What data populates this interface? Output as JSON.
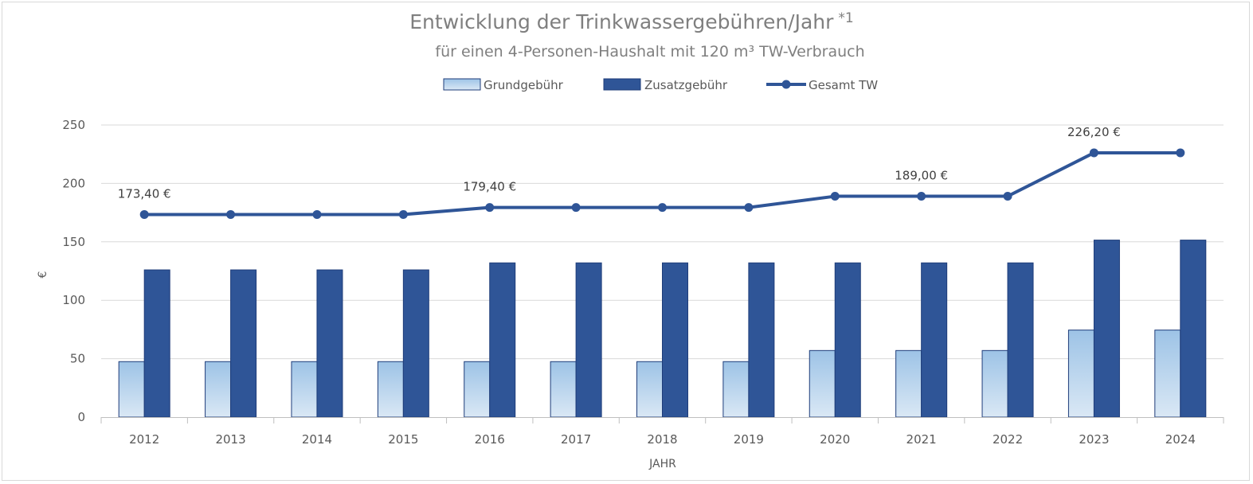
{
  "chart_data": {
    "type": "bar",
    "title": "Entwicklung der Trinkwassergebühren/Jahr",
    "title_sup": "*1",
    "subtitle": "für einen 4-Personen-Haushalt mit 120 m³ TW-Verbrauch",
    "xlabel": "JAHR",
    "ylabel": "€",
    "ylim": [
      0,
      250
    ],
    "yticks": [
      "0",
      "50",
      "100",
      "150",
      "200",
      "250"
    ],
    "grid": true,
    "legend_position": "top",
    "categories": [
      "2012",
      "2013",
      "2014",
      "2015",
      "2016",
      "2017",
      "2018",
      "2019",
      "2020",
      "2021",
      "2022",
      "2023",
      "2024"
    ],
    "series": [
      {
        "name": "Grundgebühr",
        "kind": "bar",
        "color": "#9dc3e6",
        "values": [
          47.5,
          47.5,
          47.5,
          47.5,
          47.5,
          47.5,
          47.5,
          47.5,
          57,
          57,
          57,
          74.5,
          74.5
        ]
      },
      {
        "name": "Zusatzgebühr",
        "kind": "bar",
        "color": "#2f5597",
        "values": [
          126,
          126,
          126,
          126,
          132,
          132,
          132,
          132,
          132,
          132,
          132,
          151.5,
          151.5
        ]
      },
      {
        "name": "Gesamt TW",
        "kind": "line",
        "color": "#2f5597",
        "values": [
          173.4,
          173.4,
          173.4,
          173.4,
          179.4,
          179.4,
          179.4,
          179.4,
          189,
          189,
          189,
          226.2,
          226.2
        ]
      }
    ],
    "data_labels": [
      {
        "category": "2012",
        "text": "173,40 €"
      },
      {
        "category": "2016",
        "text": "179,40 €"
      },
      {
        "category": "2021",
        "text": "189,00 €"
      },
      {
        "category": "2023",
        "text": "226,20 €"
      }
    ]
  }
}
